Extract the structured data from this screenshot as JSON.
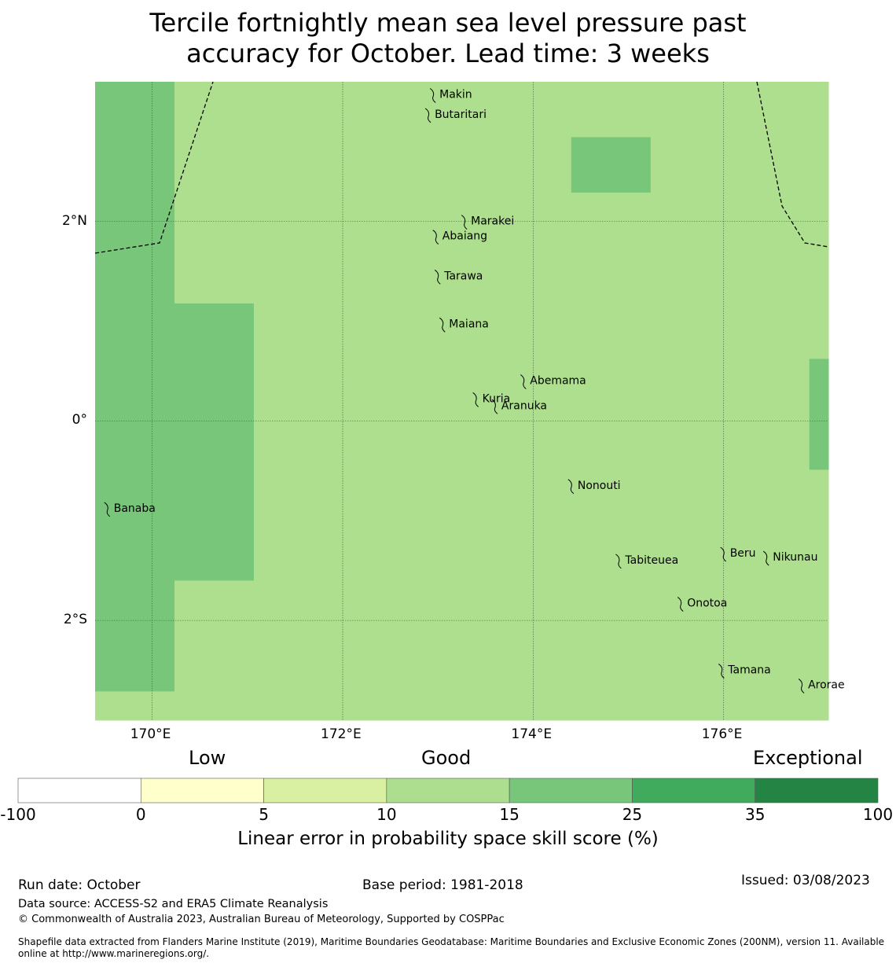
{
  "title_lines": [
    "Tercile fortnightly mean sea level pressure past",
    "accuracy for October. Lead time: 3 weeks"
  ],
  "map": {
    "lon_range": [
      169.4,
      177.1
    ],
    "lat_range": [
      -3.0,
      3.4
    ],
    "x_ticks": [
      {
        "value": 170,
        "label": "170°E"
      },
      {
        "value": 172,
        "label": "172°E"
      },
      {
        "value": 174,
        "label": "174°E"
      },
      {
        "value": 176,
        "label": "176°E"
      }
    ],
    "y_ticks": [
      {
        "value": 2,
        "label": "2°N"
      },
      {
        "value": 0,
        "label": "0°"
      },
      {
        "value": -2,
        "label": "2°S"
      }
    ],
    "colors": {
      "light": "#addf8e",
      "mid": "#78c679",
      "dark": "#41ab5d"
    },
    "grid": {
      "lon0": 169.4,
      "lat0": 3.4,
      "dlon": 0.8333,
      "dlat": 0.5556,
      "cells": [
        "MLLLLLLLLLLMLLM",
        "MLLLLLMLLLLLMMM",
        "MLLLLLLLLLMMMMM",
        "MLLLLLLLLLMMMMM",
        "MMLLLLLLLLMMMMM",
        "MMLLLLLLLMMMMMM",
        "MMLLLLLLLMMLLLM",
        "MMLLLLLLLLLLLLL",
        "MMLLLLLLLLLLLLL",
        "MLLLLLLLLLLLLLL",
        "MLLLLLLLLLLLLLL",
        "LLLLLLLLLLLLLLL",
        "LLLLLLLLLLLLLLL",
        "LLLLLLLLLLLLMLL",
        "LLLLLLLLLLLLLLL"
      ]
    },
    "islands": [
      {
        "name": "Makin",
        "lon": 172.95,
        "lat": 3.27
      },
      {
        "name": "Butaritari",
        "lon": 172.9,
        "lat": 3.07
      },
      {
        "name": "Marakei",
        "lon": 173.28,
        "lat": 2.0
      },
      {
        "name": "Abaiang",
        "lon": 172.98,
        "lat": 1.85
      },
      {
        "name": "Tarawa",
        "lon": 173.0,
        "lat": 1.45
      },
      {
        "name": "Maiana",
        "lon": 173.05,
        "lat": 0.97
      },
      {
        "name": "Abemama",
        "lon": 173.9,
        "lat": 0.4
      },
      {
        "name": "Kuria",
        "lon": 173.4,
        "lat": 0.22
      },
      {
        "name": "Aranuka",
        "lon": 173.6,
        "lat": 0.15
      },
      {
        "name": "Nonouti",
        "lon": 174.4,
        "lat": -0.65
      },
      {
        "name": "Banaba",
        "lon": 169.53,
        "lat": -0.88
      },
      {
        "name": "Tabiteuea",
        "lon": 174.9,
        "lat": -1.4
      },
      {
        "name": "Beru",
        "lon": 176.0,
        "lat": -1.33
      },
      {
        "name": "Nikunau",
        "lon": 176.45,
        "lat": -1.37
      },
      {
        "name": "Onotoa",
        "lon": 175.55,
        "lat": -1.83
      },
      {
        "name": "Tamana",
        "lon": 175.98,
        "lat": -2.5
      },
      {
        "name": "Arorae",
        "lon": 176.82,
        "lat": -2.65
      }
    ]
  },
  "colorbar": {
    "categories": [
      "Low",
      "Good",
      "Exceptional"
    ],
    "ticks": [
      "-100",
      "0",
      "5",
      "10",
      "15",
      "25",
      "35",
      "100"
    ],
    "colors": [
      "#ffffff",
      "#ffffcc",
      "#d9f0a3",
      "#addd8e",
      "#78c679",
      "#41ab5d",
      "#238443"
    ],
    "label": "Linear error in probability space skill score (%)"
  },
  "footer": {
    "run_date": "Run date: October",
    "base_period": "Base period: 1981-2018",
    "issued": "Issued: 03/08/2023",
    "data_source": "Data source: ACCESS-S2 and ERA5 Climate Reanalysis",
    "copyright": "© Commonwealth of Australia 2023, Australian Bureau of Meteorology, Supported by COSPPac",
    "shapefile_line1": "Shapefile data extracted from Flanders Marine Institute (2019), Maritime Boundaries Geodatabase: Maritime Boundaries and Exclusive Economic Zones (200NM), version 11. Available",
    "shapefile_line2": "online at http://www.marineregions.org/."
  }
}
